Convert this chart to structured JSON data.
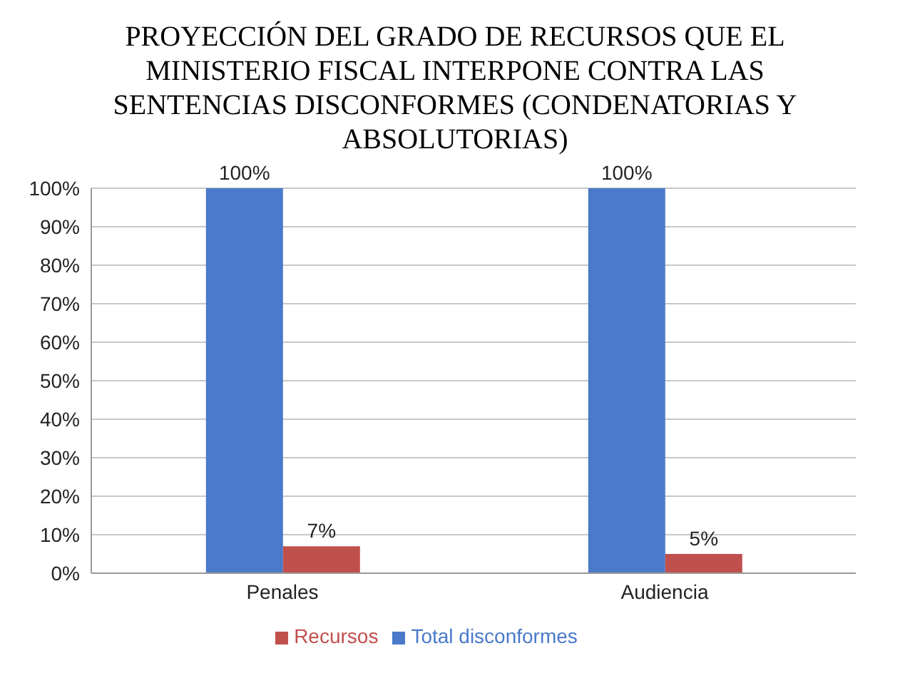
{
  "chart_data": {
    "type": "bar",
    "title": "PROYECCIÓN DEL GRADO DE RECURSOS QUE EL MINISTERIO FISCAL INTERPONE CONTRA LAS SENTENCIAS DISCONFORMES (CONDENATORIAS Y ABSOLUTORIAS)",
    "categories": [
      "Penales",
      "Audiencia"
    ],
    "series": [
      {
        "name": "Total disconformes",
        "color": "#4a7ac9",
        "values": [
          100,
          100
        ],
        "value_labels": [
          "100%",
          "100%"
        ]
      },
      {
        "name": "Recursos",
        "color": "#c0504d",
        "values": [
          7,
          5
        ],
        "value_labels": [
          "7%",
          "5%"
        ]
      }
    ],
    "ylim": [
      0,
      100
    ],
    "yticks": [
      {
        "value": 0,
        "label": "0%"
      },
      {
        "value": 10,
        "label": "10%"
      },
      {
        "value": 20,
        "label": "20%"
      },
      {
        "value": 30,
        "label": "30%"
      },
      {
        "value": 40,
        "label": "40%"
      },
      {
        "value": 50,
        "label": "50%"
      },
      {
        "value": 60,
        "label": "60%"
      },
      {
        "value": 70,
        "label": "70%"
      },
      {
        "value": 80,
        "label": "80%"
      },
      {
        "value": 90,
        "label": "90%"
      },
      {
        "value": 100,
        "label": "100%"
      }
    ],
    "grid": "y",
    "legend": "bottom"
  }
}
